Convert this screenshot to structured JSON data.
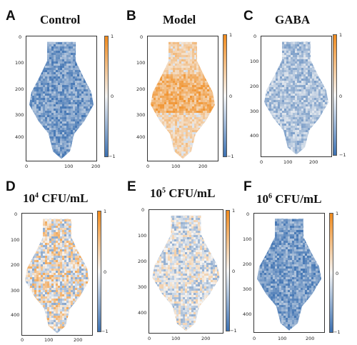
{
  "colors": {
    "blue": "#3a6fb0",
    "mid": "#f4f4f4",
    "orange": "#f08a1c"
  },
  "panels": [
    {
      "letter": "A",
      "title": "Control",
      "title_exp": "",
      "title_suffix": "",
      "tone": "blue",
      "yticks": [
        "0",
        "100",
        "200",
        "300",
        "400"
      ],
      "xticks": [
        "0",
        "100",
        "200"
      ],
      "cbar": [
        "1",
        "0",
        "−1"
      ]
    },
    {
      "letter": "B",
      "title": "Model",
      "title_exp": "",
      "title_suffix": "",
      "tone": "orange",
      "yticks": [
        "0",
        "100",
        "200",
        "300",
        "400"
      ],
      "xticks": [
        "0",
        "100",
        "200"
      ],
      "cbar": [
        "1",
        "0",
        "−1"
      ]
    },
    {
      "letter": "C",
      "title": "GABA",
      "title_exp": "",
      "title_suffix": "",
      "tone": "lightblue",
      "yticks": [
        "0",
        "100",
        "200",
        "300",
        "400"
      ],
      "xticks": [
        "0",
        "100",
        "200"
      ],
      "cbar": [
        "1",
        "0",
        "−1"
      ]
    },
    {
      "letter": "D",
      "title": "10",
      "title_exp": "4",
      "title_suffix": " CFU/mL",
      "tone": "mixed",
      "yticks": [
        "0",
        "100",
        "200",
        "300",
        "400"
      ],
      "xticks": [
        "0",
        "100",
        "200"
      ],
      "cbar": [
        "1",
        "0",
        "−1"
      ]
    },
    {
      "letter": "E",
      "title": "10",
      "title_exp": "5",
      "title_suffix": " CFU/mL",
      "tone": "palemix",
      "yticks": [
        "0",
        "100",
        "200",
        "300",
        "400"
      ],
      "xticks": [
        "0",
        "100",
        "200"
      ],
      "cbar": [
        "1",
        "0",
        "−1"
      ]
    },
    {
      "letter": "F",
      "title": "10",
      "title_exp": "6",
      "title_suffix": " CFU/mL",
      "tone": "blue",
      "yticks": [
        "0",
        "100",
        "200",
        "300",
        "400"
      ],
      "xticks": [
        "0",
        "100",
        "200"
      ],
      "cbar": [
        "1",
        "0",
        "−1"
      ]
    }
  ]
}
